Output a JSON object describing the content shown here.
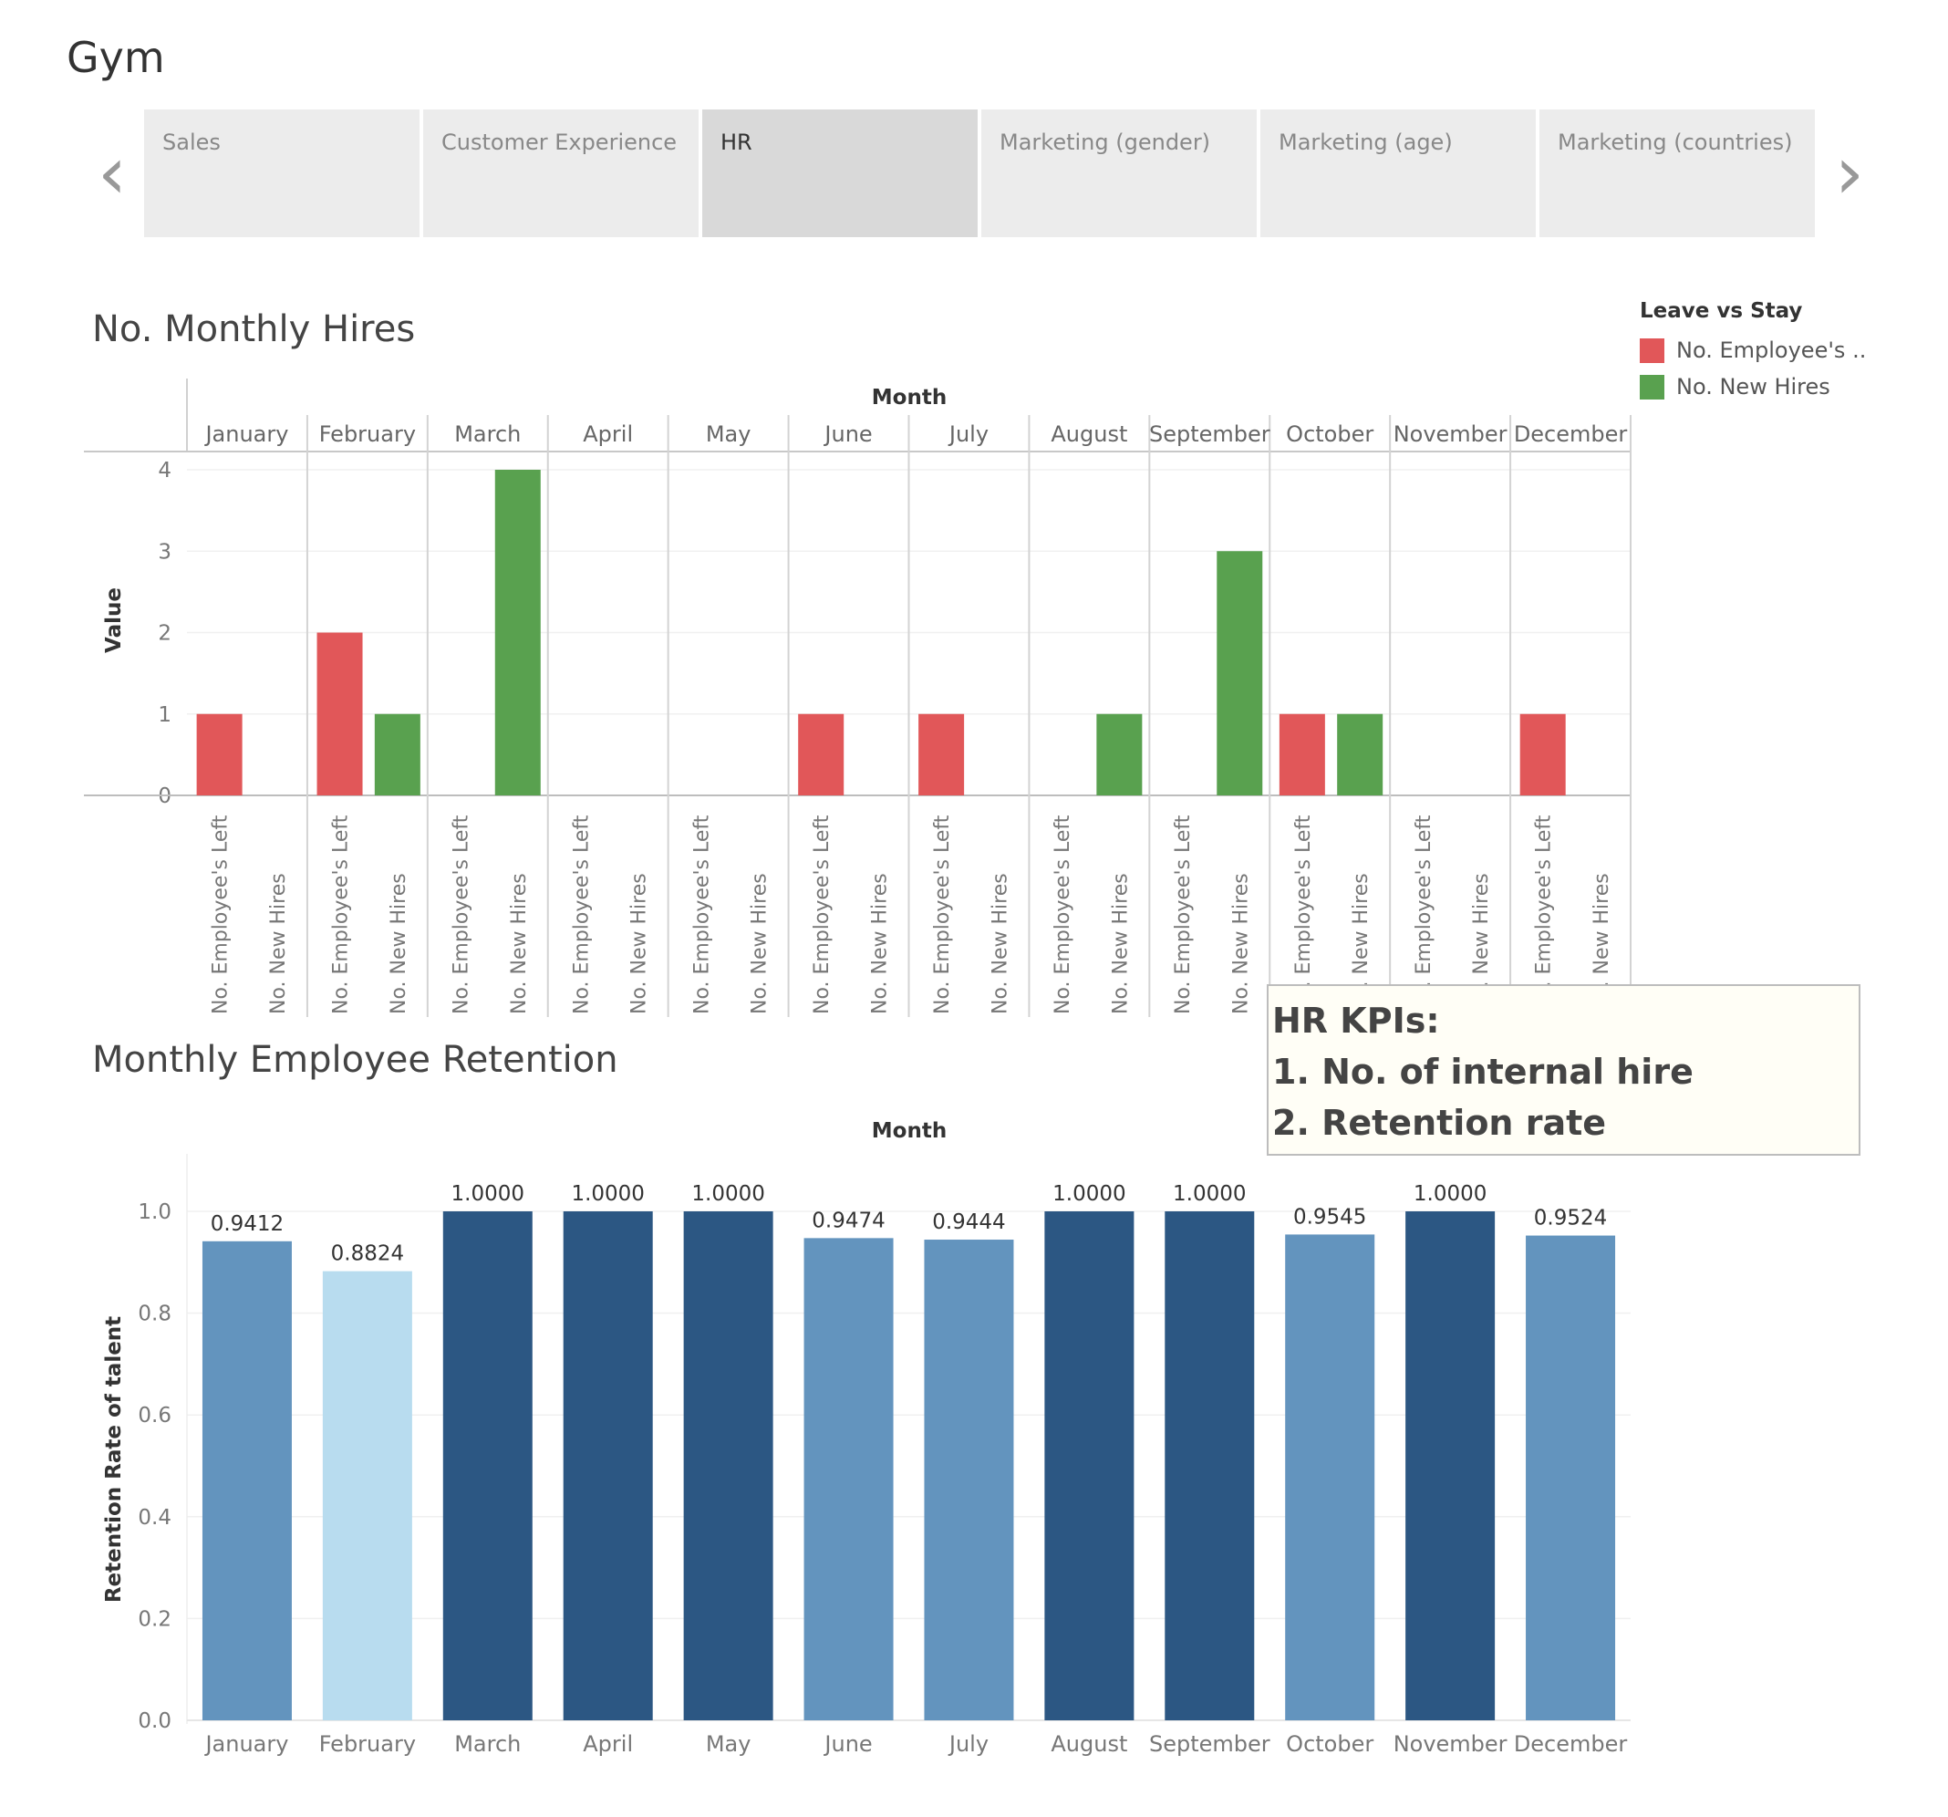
{
  "app": {
    "title": "Gym"
  },
  "nav": {
    "prev_icon": "‹",
    "next_icon": "›"
  },
  "tabs": [
    {
      "label": "Sales",
      "active": false
    },
    {
      "label": "Customer Experience",
      "active": false
    },
    {
      "label": "HR",
      "active": true
    },
    {
      "label": "Marketing (gender)",
      "active": false
    },
    {
      "label": "Marketing (age)",
      "active": false
    },
    {
      "label": "Marketing (countries)",
      "active": false
    }
  ],
  "hires_chart": {
    "title": "No. Monthly Hires"
  },
  "retention_chart": {
    "title": "Monthly Employee Retention"
  },
  "legend": {
    "title": "Leave vs Stay",
    "items": [
      {
        "label": "No. Employee's ..",
        "color": "#e15759"
      },
      {
        "label": "No. New Hires",
        "color": "#59a14f"
      }
    ]
  },
  "kpi": {
    "lines": [
      "HR KPIs:",
      "1. No. of internal hire",
      "2. Retention rate"
    ]
  },
  "colors": {
    "left": "#e15759",
    "hires": "#59a14f",
    "retention_dark": "#2c5783",
    "retention_mid": "#6394be",
    "retention_light": "#b8dcef"
  },
  "chart_data": [
    {
      "type": "bar",
      "title": "No. Monthly Hires",
      "column_header": "Month",
      "ylabel": "Value",
      "categories": [
        "January",
        "February",
        "March",
        "April",
        "May",
        "June",
        "July",
        "August",
        "September",
        "October",
        "November",
        "December"
      ],
      "sub_categories": [
        "No. Employee's Left",
        "No. New Hires"
      ],
      "series": [
        {
          "name": "No. Employee's Left",
          "values": [
            1,
            2,
            0,
            0,
            0,
            1,
            1,
            0,
            0,
            1,
            0,
            1
          ]
        },
        {
          "name": "No. New Hires",
          "values": [
            0,
            1,
            4,
            0,
            0,
            0,
            0,
            1,
            3,
            1,
            0,
            0
          ]
        }
      ],
      "y_ticks": [
        "0",
        "1",
        "2",
        "3",
        "4"
      ],
      "ylim": [
        0,
        4.2
      ],
      "grid": true,
      "legend_position": "top-right"
    },
    {
      "type": "bar",
      "title": "Monthly Employee Retention",
      "column_header": "Month",
      "ylabel": "Retention Rate of talent",
      "categories": [
        "January",
        "February",
        "March",
        "April",
        "May",
        "June",
        "July",
        "August",
        "September",
        "October",
        "November",
        "December"
      ],
      "values": [
        0.9412,
        0.8824,
        1.0,
        1.0,
        1.0,
        0.9474,
        0.9444,
        1.0,
        1.0,
        0.9545,
        1.0,
        0.9524
      ],
      "data_labels": [
        "0.9412",
        "0.8824",
        "1.0000",
        "1.0000",
        "1.0000",
        "0.9474",
        "0.9444",
        "1.0000",
        "1.0000",
        "0.9545",
        "1.0000",
        "0.9524"
      ],
      "y_ticks": [
        "0.0",
        "0.2",
        "0.4",
        "0.6",
        "0.8",
        "1.0"
      ],
      "ylim": [
        0,
        1.03
      ],
      "grid": true
    }
  ]
}
